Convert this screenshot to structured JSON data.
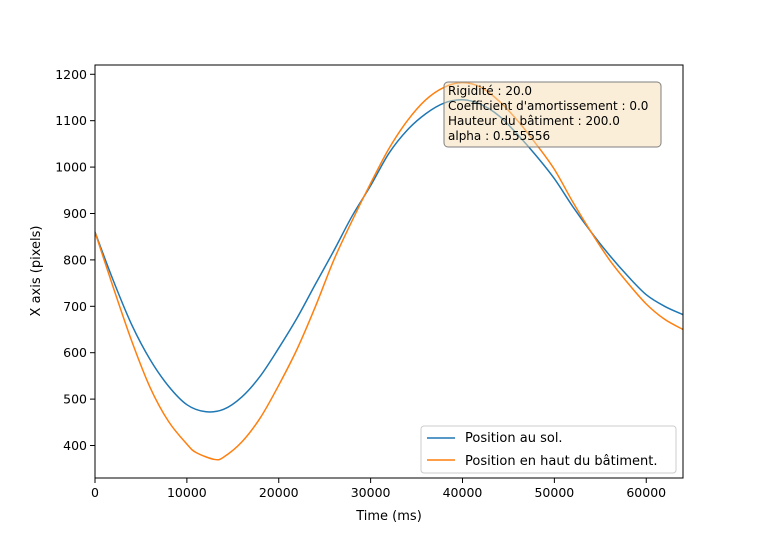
{
  "chart_data": {
    "type": "line",
    "title": "",
    "xlabel": "Time (ms)",
    "ylabel": "X axis (pixels)",
    "xlim": [
      0,
      64000
    ],
    "ylim": [
      330,
      1220
    ],
    "xticks": [
      0,
      10000,
      20000,
      30000,
      40000,
      50000,
      60000
    ],
    "yticks": [
      400,
      500,
      600,
      700,
      800,
      900,
      1000,
      1100,
      1200
    ],
    "grid": false,
    "legend_position": "lower-right",
    "series": [
      {
        "name": "Position au sol.",
        "color": "#1f77b4",
        "x": [
          0,
          2000,
          4000,
          6000,
          8000,
          10000,
          12000,
          14000,
          16000,
          18000,
          20000,
          22000,
          24000,
          26000,
          28000,
          30000,
          32000,
          34000,
          36000,
          38000,
          40000,
          42000,
          44000,
          46000,
          48000,
          50000,
          52000,
          54000,
          56000,
          58000,
          60000,
          62000,
          64000
        ],
        "values": [
          860,
          755,
          660,
          585,
          528,
          488,
          473,
          478,
          505,
          550,
          610,
          675,
          748,
          820,
          895,
          960,
          1030,
          1080,
          1115,
          1138,
          1145,
          1135,
          1110,
          1070,
          1025,
          975,
          915,
          860,
          810,
          765,
          725,
          700,
          682
        ]
      },
      {
        "name": "Position en haut du bâtiment.",
        "color": "#ff7f0e",
        "x": [
          0,
          2000,
          4000,
          6000,
          8000,
          10000,
          11000,
          13000,
          14000,
          16000,
          18000,
          20000,
          22000,
          24000,
          26000,
          28000,
          30000,
          32000,
          34000,
          36000,
          38000,
          40000,
          42000,
          44000,
          46000,
          48000,
          50000,
          52000,
          54000,
          56000,
          58000,
          60000,
          62000,
          64000
        ],
        "values": [
          860,
          740,
          625,
          525,
          452,
          403,
          385,
          370,
          375,
          408,
          460,
          530,
          608,
          700,
          800,
          885,
          965,
          1040,
          1100,
          1145,
          1172,
          1182,
          1172,
          1142,
          1100,
          1050,
          995,
          925,
          860,
          800,
          750,
          705,
          672,
          650
        ]
      }
    ],
    "annotation": {
      "lines": [
        "Rigidité : 20.0",
        "Coefficient d'amortissement : 0.0",
        "Hauteur du bâtiment : 200.0",
        "alpha : 0.555556"
      ]
    }
  }
}
